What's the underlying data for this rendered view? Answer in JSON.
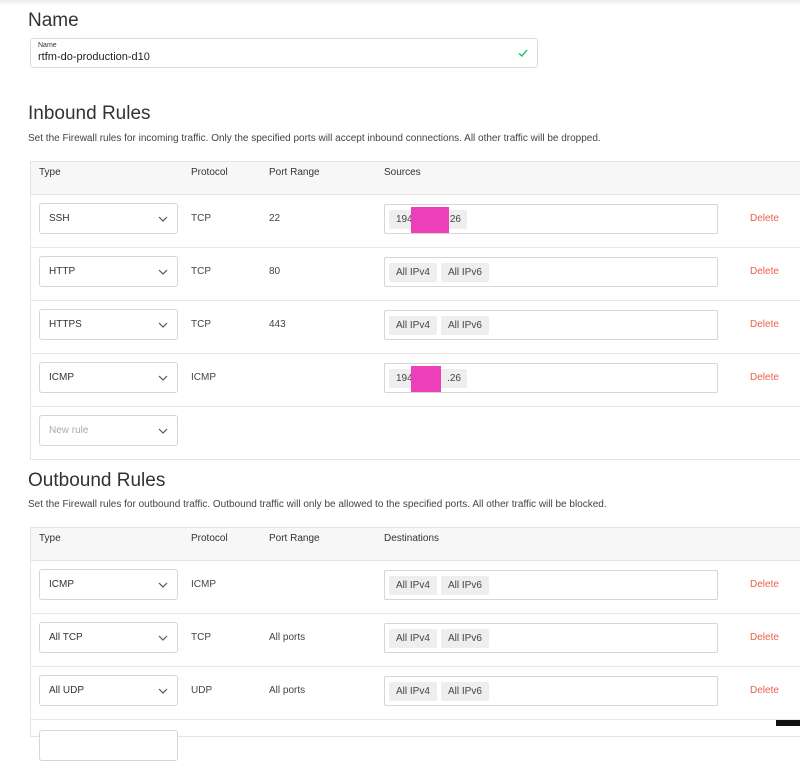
{
  "name_section": {
    "title": "Name",
    "field_label": "Name",
    "field_value": "rtfm-do-production-d10"
  },
  "inbound": {
    "title": "Inbound Rules",
    "description": "Set the Firewall rules for incoming traffic. Only the specified ports will accept inbound connections. All other traffic will be dropped.",
    "headers": [
      "Type",
      "Protocol",
      "Port Range",
      "Sources"
    ],
    "rows": [
      {
        "type": "SSH",
        "protocol": "TCP",
        "port": "22",
        "chip_left": "194",
        "chip_right": ".26",
        "delete": "Delete"
      },
      {
        "type": "HTTP",
        "protocol": "TCP",
        "port": "80",
        "chip_a": "All IPv4",
        "chip_b": "All IPv6",
        "delete": "Delete"
      },
      {
        "type": "HTTPS",
        "protocol": "TCP",
        "port": "443",
        "chip_a": "All IPv4",
        "chip_b": "All IPv6",
        "delete": "Delete"
      },
      {
        "type": "ICMP",
        "protocol": "ICMP",
        "port": "",
        "chip_left": "194",
        "chip_right": ".26",
        "delete": "Delete"
      }
    ],
    "new_rule_placeholder": "New rule"
  },
  "outbound": {
    "title": "Outbound Rules",
    "description": "Set the Firewall rules for outbound traffic. Outbound traffic will only be allowed to the specified ports. All other traffic will be blocked.",
    "headers": [
      "Type",
      "Protocol",
      "Port Range",
      "Destinations"
    ],
    "rows": [
      {
        "type": "ICMP",
        "protocol": "ICMP",
        "port": "",
        "chip_a": "All IPv4",
        "chip_b": "All IPv6",
        "delete": "Delete"
      },
      {
        "type": "All TCP",
        "protocol": "TCP",
        "port": "All ports",
        "chip_a": "All IPv4",
        "chip_b": "All IPv6",
        "delete": "Delete"
      },
      {
        "type": "All UDP",
        "protocol": "UDP",
        "port": "All ports",
        "chip_a": "All IPv4",
        "chip_b": "All IPv6",
        "delete": "Delete"
      }
    ]
  },
  "colors": {
    "delete_link": "#e8604c",
    "check": "#2fbf71",
    "redaction": "#ec3fb8"
  }
}
